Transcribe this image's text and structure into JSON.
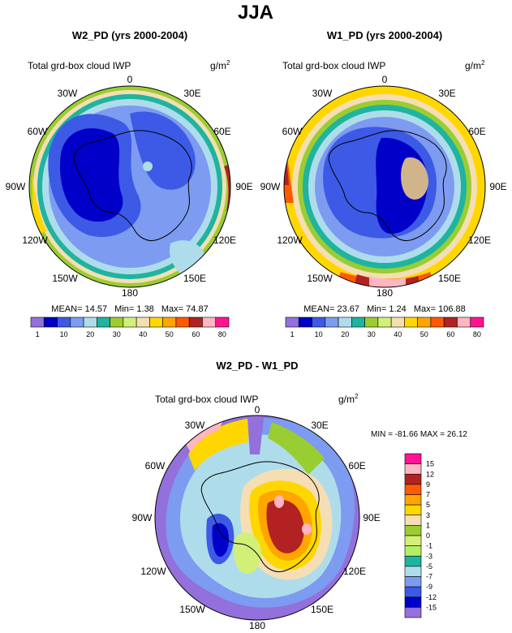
{
  "figure": {
    "title": "JJA",
    "variable_label": "Total grd-box cloud IWP",
    "units": "g/m",
    "units_exponent": "2"
  },
  "lon_labels": [
    "0",
    "30E",
    "60E",
    "90E",
    "120E",
    "150E",
    "180",
    "150W",
    "120W",
    "90W",
    "60W",
    "30W"
  ],
  "chart_data": [
    {
      "type": "heatmap",
      "projection": "south-polar-stereographic",
      "title": "W2_PD (yrs 2000-2004)",
      "stats": {
        "mean_label": "MEAN=",
        "mean": "14.57",
        "min_label": "Min=",
        "min": "1.38",
        "max_label": "Max=",
        "max": "74.87"
      },
      "colorbar": {
        "orientation": "horizontal",
        "levels": [
          "1",
          "10",
          "20",
          "30",
          "40",
          "50",
          "60",
          "80"
        ],
        "colors": [
          "#9370db",
          "#0000c8",
          "#3c5ae6",
          "#7d9bf0",
          "#afdceb",
          "#1eb4a0",
          "#9acd32",
          "#d2f078",
          "#f5deb3",
          "#ffd700",
          "#ffa500",
          "#ff5a00",
          "#b22222",
          "#ffb6c1",
          "#ff1493"
        ]
      }
    },
    {
      "type": "heatmap",
      "projection": "south-polar-stereographic",
      "title": "W1_PD (yrs 2000-2004)",
      "stats": {
        "mean_label": "MEAN=",
        "mean": "23.67",
        "min_label": "Min=",
        "min": "1.24",
        "max_label": "Max=",
        "max": "106.88"
      },
      "colorbar": {
        "orientation": "horizontal",
        "levels": [
          "1",
          "10",
          "20",
          "30",
          "40",
          "50",
          "60",
          "80"
        ],
        "colors": [
          "#9370db",
          "#0000c8",
          "#3c5ae6",
          "#7d9bf0",
          "#afdceb",
          "#1eb4a0",
          "#9acd32",
          "#d2f078",
          "#f5deb3",
          "#ffd700",
          "#ffa500",
          "#ff5a00",
          "#b22222",
          "#ffb6c1",
          "#ff1493"
        ]
      }
    },
    {
      "type": "heatmap",
      "projection": "south-polar-stereographic",
      "title": "W2_PD - W1_PD",
      "stats": {
        "minmax": "MIN = -81.66 MAX = 26.12"
      },
      "colorbar": {
        "orientation": "vertical",
        "levels": [
          "15",
          "12",
          "9",
          "7",
          "5",
          "3",
          "1",
          "0",
          "-1",
          "-3",
          "-5",
          "-7",
          "-9",
          "-12",
          "-15"
        ],
        "colors": [
          "#ff1493",
          "#ffb6c1",
          "#b22222",
          "#ff5a00",
          "#ffa500",
          "#ffd700",
          "#f5deb3",
          "#9acd32",
          "#d2f078",
          "#b4ee64",
          "#1eb4a0",
          "#afdceb",
          "#7d9bf0",
          "#3c5ae6",
          "#0000c8",
          "#9370db"
        ]
      }
    }
  ]
}
